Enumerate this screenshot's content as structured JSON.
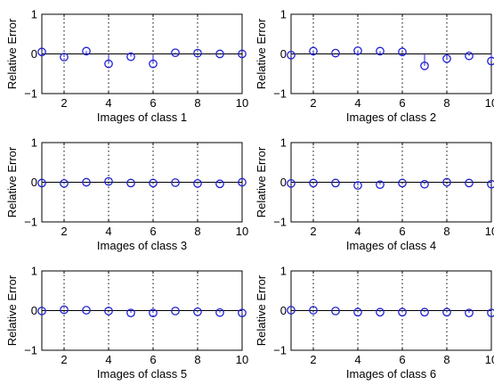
{
  "chart_data": [
    {
      "type": "scatter",
      "xlabel": "Images of class 1",
      "ylabel": "Relative Error",
      "xlim": [
        1,
        10
      ],
      "ylim": [
        -1,
        1
      ],
      "xticks": [
        2,
        4,
        6,
        8,
        10
      ],
      "yticks": [
        -1,
        0,
        1
      ],
      "grid": "x-dotted",
      "x": [
        1,
        2,
        3,
        4,
        5,
        6,
        7,
        8,
        9,
        10
      ],
      "y": [
        0.05,
        -0.08,
        0.07,
        -0.25,
        -0.07,
        -0.25,
        0.03,
        0.02,
        0.0,
        0.0
      ]
    },
    {
      "type": "scatter",
      "xlabel": "Images of class 2",
      "ylabel": "Relative Error",
      "xlim": [
        1,
        10
      ],
      "ylim": [
        -1,
        1
      ],
      "xticks": [
        2,
        4,
        6,
        8,
        10
      ],
      "yticks": [
        -1,
        0,
        1
      ],
      "grid": "x-dotted",
      "x": [
        1,
        2,
        3,
        4,
        5,
        6,
        7,
        8,
        9,
        10
      ],
      "y": [
        -0.03,
        0.07,
        0.02,
        0.08,
        0.07,
        0.05,
        -0.3,
        -0.12,
        -0.05,
        -0.18
      ]
    },
    {
      "type": "scatter",
      "xlabel": "Images of class 3",
      "ylabel": "Relative Error",
      "xlim": [
        1,
        10
      ],
      "ylim": [
        -1,
        1
      ],
      "xticks": [
        2,
        4,
        6,
        8,
        10
      ],
      "yticks": [
        -1,
        0,
        1
      ],
      "grid": "x-dotted",
      "x": [
        1,
        2,
        3,
        4,
        5,
        6,
        7,
        8,
        9,
        10
      ],
      "y": [
        -0.02,
        -0.03,
        0.0,
        0.02,
        -0.02,
        -0.02,
        -0.01,
        -0.03,
        -0.04,
        0.0
      ]
    },
    {
      "type": "scatter",
      "xlabel": "Images of class 4",
      "ylabel": "Relative Error",
      "xlim": [
        1,
        10
      ],
      "ylim": [
        -1,
        1
      ],
      "xticks": [
        2,
        4,
        6,
        8,
        10
      ],
      "yticks": [
        -1,
        0,
        1
      ],
      "grid": "x-dotted",
      "x": [
        1,
        2,
        3,
        4,
        5,
        6,
        7,
        8,
        9,
        10
      ],
      "y": [
        -0.03,
        -0.02,
        -0.02,
        -0.08,
        -0.06,
        -0.02,
        -0.05,
        0.0,
        -0.02,
        -0.05
      ]
    },
    {
      "type": "scatter",
      "xlabel": "Images of class 5",
      "ylabel": "Relative Error",
      "xlim": [
        1,
        10
      ],
      "ylim": [
        -1,
        1
      ],
      "xticks": [
        2,
        4,
        6,
        8,
        10
      ],
      "yticks": [
        -1,
        0,
        1
      ],
      "grid": "x-dotted",
      "x": [
        1,
        2,
        3,
        4,
        5,
        6,
        7,
        8,
        9,
        10
      ],
      "y": [
        -0.01,
        0.02,
        0.01,
        -0.01,
        -0.06,
        -0.06,
        -0.01,
        -0.03,
        -0.05,
        -0.06
      ]
    },
    {
      "type": "scatter",
      "xlabel": "Images of class 6",
      "ylabel": "Relative Error",
      "xlim": [
        1,
        10
      ],
      "ylim": [
        -1,
        1
      ],
      "xticks": [
        2,
        4,
        6,
        8,
        10
      ],
      "yticks": [
        -1,
        0,
        1
      ],
      "grid": "x-dotted",
      "x": [
        1,
        2,
        3,
        4,
        5,
        6,
        7,
        8,
        9,
        10
      ],
      "y": [
        0.01,
        0.01,
        -0.01,
        -0.04,
        -0.04,
        -0.04,
        -0.04,
        -0.04,
        -0.06,
        -0.06
      ]
    }
  ],
  "colors": {
    "marker": "#1f1fd6",
    "axis": "#000000",
    "grid": "#000000"
  }
}
